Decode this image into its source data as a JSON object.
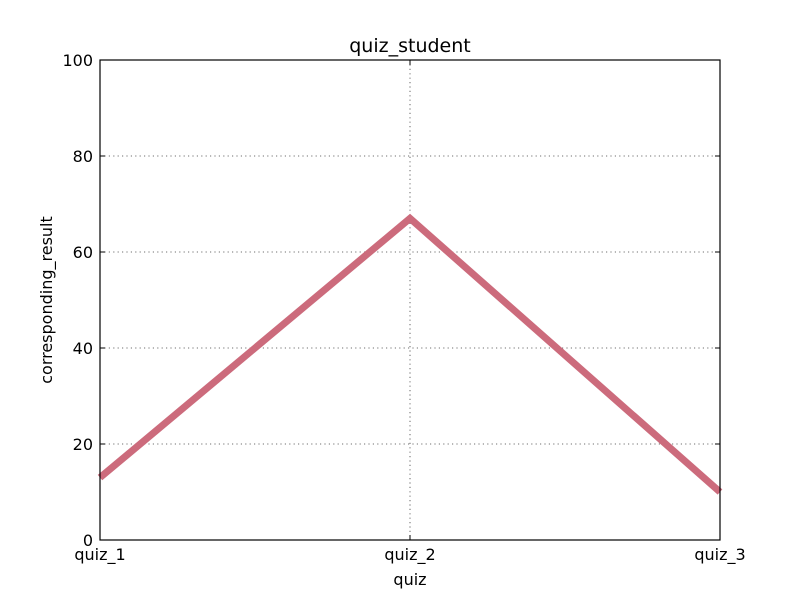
{
  "chart_data": {
    "type": "line",
    "title": "quiz_student",
    "xlabel": "quiz",
    "ylabel": "corresponding_result",
    "categories": [
      "quiz_1",
      "quiz_2",
      "quiz_3"
    ],
    "series": [
      {
        "values": [
          13,
          67,
          10
        ],
        "color": "#cc6b7c"
      }
    ],
    "ylim": [
      0,
      100
    ],
    "yticks": [
      "0",
      "20",
      "40",
      "60",
      "80",
      "100"
    ],
    "grid": true
  }
}
